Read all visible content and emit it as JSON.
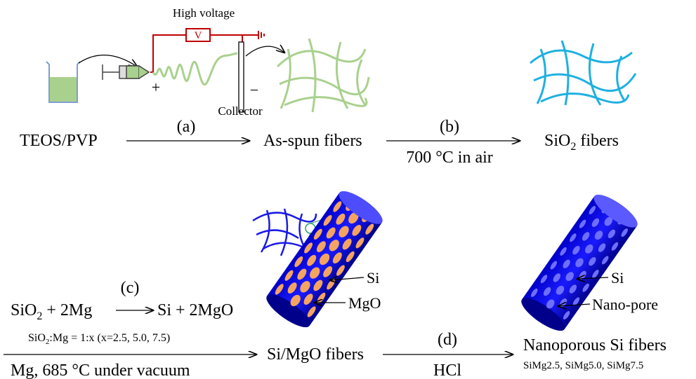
{
  "setup": {
    "high_voltage": "High voltage",
    "meter": "V",
    "plus": "+",
    "minus": "−",
    "collector": "Collector"
  },
  "top_row": {
    "start": "TEOS/PVP",
    "step_a": "(a)",
    "middle": "As-spun fibers",
    "step_b": "(b)",
    "condition_b": "700 °C in air",
    "end": {
      "main": "SiO",
      "sub": "2",
      "rest": " fibers"
    }
  },
  "reaction": {
    "step_c": "(c)",
    "left": {
      "main": "SiO",
      "sub": "2",
      "rest": " + 2Mg"
    },
    "right": "Si + 2MgO",
    "ratio": {
      "main": "SiO",
      "sub": "2",
      "rest": ":Mg = 1:x (x=2.5, 5.0, 7.5)"
    },
    "condition_c": "Mg, 685 °C under vacuum"
  },
  "bottom_row": {
    "middle": "Si/MgO fibers",
    "si_label": "Si",
    "mgo_label": "MgO",
    "step_d": "(d)",
    "condition_d": "HCl",
    "end": "Nanoporous Si fibers",
    "samples": "SiMg2.5,  SiMg5.0,  SiMg7.5",
    "si_label_2": "Si",
    "pore_label": "Nano-pore"
  }
}
